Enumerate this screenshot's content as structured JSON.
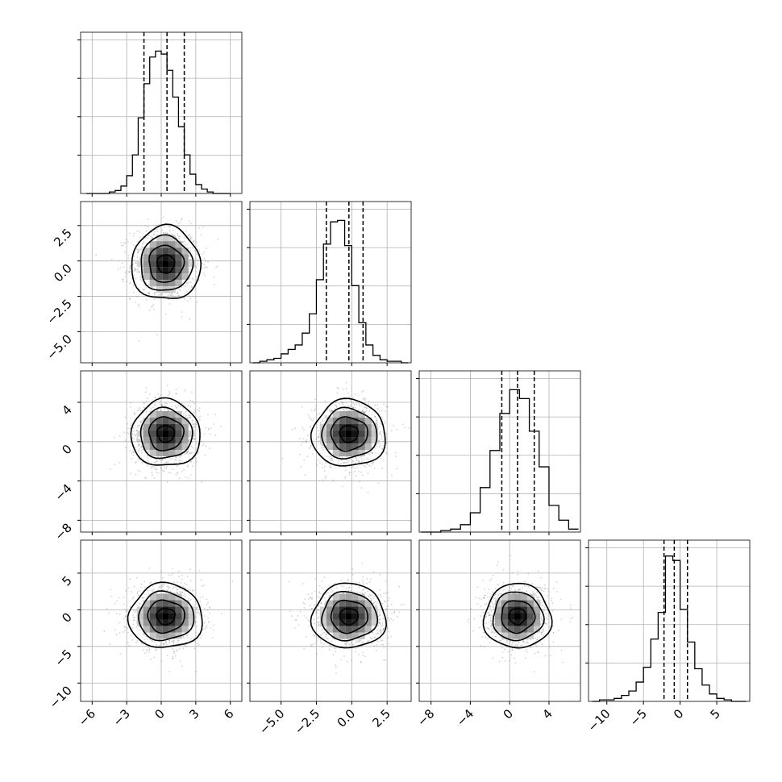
{
  "chart_data": {
    "type": "corner",
    "parameters": 4,
    "grid": true,
    "samples_color": "#808080",
    "line_color": "#000000",
    "axes": [
      {
        "range": [
          -7,
          7
        ],
        "ticks": [
          -6,
          -3,
          0,
          3,
          6
        ],
        "tick_labels": [
          "−6",
          "−3",
          "0",
          "3",
          "6"
        ]
      },
      {
        "range": [
          -7.2,
          4.2
        ],
        "ticks": [
          -5.0,
          -2.5,
          0.0,
          2.5
        ],
        "tick_labels": [
          "−5.0",
          "−2.5",
          "0.0",
          "2.5"
        ]
      },
      {
        "range": [
          -9.2,
          7.2
        ],
        "ticks": [
          -8,
          -4,
          0,
          4
        ],
        "tick_labels": [
          "−8",
          "−4",
          "0",
          "4"
        ]
      },
      {
        "range": [
          -12.5,
          9.5
        ],
        "ticks": [
          -10,
          -5,
          0,
          5
        ],
        "tick_labels": [
          "−10",
          "−5",
          "0",
          "5"
        ]
      }
    ],
    "quantiles": [
      [
        -1.5,
        0.5,
        2.0
      ],
      [
        -1.8,
        -0.2,
        0.8
      ],
      [
        -0.8,
        0.8,
        2.5
      ],
      [
        -2.2,
        -0.8,
        1.0
      ]
    ],
    "histograms": [
      {
        "bins": [
          -6.5,
          -6.0,
          -5.5,
          -5.0,
          -4.5,
          -4.0,
          -3.5,
          -3.0,
          -2.5,
          -2.0,
          -1.5,
          -1.0,
          -0.5,
          0.0,
          0.5,
          1.0,
          1.5,
          2.0,
          2.5,
          3.0,
          3.5,
          4.0,
          4.5,
          5.0,
          5.5,
          6.0
        ],
        "counts": [
          0,
          0,
          0,
          0,
          0.01,
          0.02,
          0.05,
          0.12,
          0.26,
          0.51,
          0.74,
          0.92,
          0.96,
          0.94,
          0.83,
          0.65,
          0.45,
          0.26,
          0.13,
          0.06,
          0.03,
          0.01,
          0,
          0,
          0
        ]
      },
      {
        "bins": [
          -7.0,
          -6.5,
          -6.0,
          -5.5,
          -5.0,
          -4.5,
          -4.0,
          -3.5,
          -3.0,
          -2.5,
          -2.0,
          -1.5,
          -1.0,
          -0.5,
          0.0,
          0.5,
          1.0,
          1.5,
          2.0,
          2.5,
          3.0,
          3.5,
          4.0
        ],
        "counts": [
          0,
          0.01,
          0.02,
          0.03,
          0.06,
          0.09,
          0.12,
          0.2,
          0.33,
          0.56,
          0.8,
          0.95,
          0.96,
          0.79,
          0.52,
          0.27,
          0.12,
          0.05,
          0.02,
          0.01,
          0.01,
          0
        ]
      },
      {
        "bins": [
          -9.0,
          -8.0,
          -7.0,
          -6.0,
          -5.0,
          -4.0,
          -3.0,
          -2.0,
          -1.0,
          0.0,
          1.0,
          2.0,
          3.0,
          4.0,
          5.0,
          6.0,
          7.0
        ],
        "counts": [
          0,
          0,
          0.01,
          0.02,
          0.05,
          0.13,
          0.3,
          0.55,
          0.8,
          0.96,
          0.9,
          0.68,
          0.44,
          0.18,
          0.08,
          0.02
        ]
      },
      {
        "bins": [
          -12.0,
          -11.0,
          -10.0,
          -9.0,
          -8.0,
          -7.0,
          -6.0,
          -5.0,
          -4.0,
          -3.0,
          -2.0,
          -1.0,
          0.0,
          1.0,
          2.0,
          3.0,
          4.0,
          5.0,
          6.0,
          7.0,
          8.0,
          9.0
        ],
        "counts": [
          0,
          0.01,
          0.01,
          0.02,
          0.04,
          0.07,
          0.13,
          0.23,
          0.42,
          0.6,
          0.98,
          0.95,
          0.62,
          0.4,
          0.22,
          0.11,
          0.05,
          0.02,
          0.01,
          0,
          0
        ]
      }
    ],
    "joint": [
      {
        "row": 1,
        "col": 0,
        "center": [
          0.4,
          -0.2
        ],
        "sigma": [
          1.5,
          1.3
        ],
        "contours_sigma": [
          0.5,
          1.0,
          1.5,
          2.0
        ]
      },
      {
        "row": 2,
        "col": 0,
        "center": [
          0.4,
          0.8
        ],
        "sigma": [
          1.5,
          1.7
        ],
        "contours_sigma": [
          0.5,
          1.0,
          1.5,
          2.0
        ]
      },
      {
        "row": 3,
        "col": 0,
        "center": [
          0.4,
          -0.9
        ],
        "sigma": [
          1.6,
          2.2
        ],
        "contours_sigma": [
          0.5,
          1.0,
          1.5,
          2.0
        ]
      },
      {
        "row": 2,
        "col": 1,
        "center": [
          -0.2,
          0.8
        ],
        "sigma": [
          1.3,
          1.7
        ],
        "contours_sigma": [
          0.5,
          1.0,
          1.5,
          2.0
        ]
      },
      {
        "row": 3,
        "col": 1,
        "center": [
          -0.2,
          -0.9
        ],
        "sigma": [
          1.3,
          2.2
        ],
        "contours_sigma": [
          0.5,
          1.0,
          1.5,
          2.0
        ]
      },
      {
        "row": 3,
        "col": 2,
        "center": [
          0.8,
          -0.9
        ],
        "sigma": [
          1.7,
          2.2
        ],
        "contours_sigma": [
          0.5,
          1.0,
          1.5,
          2.0
        ]
      }
    ]
  }
}
